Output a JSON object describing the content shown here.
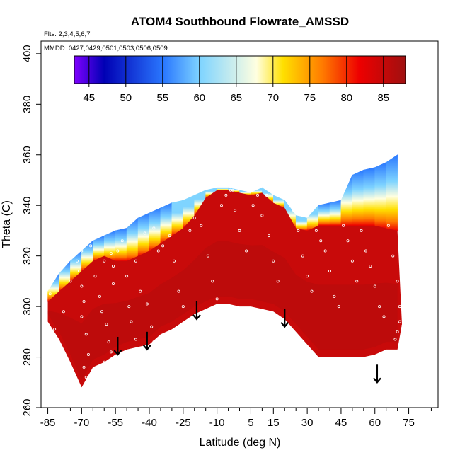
{
  "chart_data": {
    "type": "heatmap",
    "title": "ATOM4 Southbound Flowrate_AMSSD",
    "annotations": {
      "flights": "Flts: 2,3,4,5,6,7",
      "dates": "MMDD: 0427,0429,0501,0503,0506,0509"
    },
    "xlabel": "Latitude (deg N)",
    "ylabel": "Theta (C)",
    "xlim": [
      -88,
      88
    ],
    "ylim": [
      260,
      405
    ],
    "x_major_ticks": [
      -85,
      -70,
      -55,
      -40,
      -25,
      -10,
      5,
      15,
      30,
      45,
      60,
      75
    ],
    "x_minor_ticks": [
      -80,
      -75,
      -65,
      -60,
      -50,
      -45,
      -35,
      -30,
      -20,
      -15,
      -5,
      0,
      10,
      20,
      25,
      35,
      40,
      50,
      55,
      65,
      70,
      80,
      85
    ],
    "y_ticks": [
      260,
      280,
      300,
      320,
      340,
      360,
      380,
      400
    ],
    "colorbar": {
      "ticks": [
        45,
        50,
        55,
        60,
        65,
        70,
        75,
        80,
        85
      ],
      "range": [
        43,
        88
      ],
      "colors": {
        "low": "#7f00ff",
        "deep_blue": "#0000b4",
        "blue": "#2a78ff",
        "light_blue": "#7fd4ff",
        "pale": "#ffffe0",
        "yellow": "#ffe000",
        "orange": "#ff7a00",
        "red": "#ee0000",
        "high": "#a01010"
      }
    },
    "field": {
      "top_boundary_lat": [
        -85,
        -80,
        -75,
        -70,
        -65,
        -60,
        -55,
        -50,
        -45,
        -40,
        -35,
        -30,
        -25,
        -20,
        -15,
        -10,
        -5,
        0,
        5,
        10,
        15,
        20,
        25,
        30,
        35,
        40,
        45,
        50,
        55,
        60,
        65,
        70
      ],
      "top_boundary_theta": [
        306,
        313,
        318,
        322,
        326,
        328,
        330,
        331,
        335,
        337,
        339,
        341,
        342,
        344,
        346,
        347,
        347,
        346,
        345,
        347,
        344,
        342,
        336,
        335,
        340,
        341,
        342,
        352,
        354,
        355,
        357,
        360
      ],
      "bottom_boundary_lat": [
        -85,
        -80,
        -75,
        -70,
        -65,
        -60,
        -55,
        -50,
        -45,
        -40,
        -35,
        -30,
        -25,
        -20,
        -15,
        -10,
        -5,
        0,
        5,
        10,
        15,
        20,
        25,
        30,
        35,
        40,
        45,
        50,
        55,
        60,
        65,
        70,
        72
      ],
      "bottom_boundary_theta": [
        294,
        287,
        278,
        268,
        276,
        278,
        281,
        283,
        284,
        285,
        289,
        291,
        294,
        297,
        299,
        301,
        301,
        300,
        300,
        299,
        298,
        295,
        290,
        285,
        280,
        280,
        280,
        280,
        280,
        281,
        283,
        283,
        293
      ],
      "red_top_theta": [
        302,
        306,
        310,
        314,
        318,
        320,
        318,
        318,
        320,
        322,
        325,
        328,
        331,
        336,
        343,
        346,
        346,
        345,
        344,
        345,
        341,
        339,
        331,
        330,
        332,
        332,
        332,
        332,
        332,
        332,
        331,
        330
      ]
    },
    "arrows": [
      {
        "lat": -54,
        "theta": 288
      },
      {
        "lat": -41,
        "theta": 290
      },
      {
        "lat": -19,
        "theta": 302
      },
      {
        "lat": 20,
        "theta": 299
      },
      {
        "lat": 61,
        "theta": 277
      }
    ],
    "sample_points": [
      [
        -84,
        305
      ],
      [
        -82,
        291
      ],
      [
        -78,
        298
      ],
      [
        -75,
        310
      ],
      [
        -72,
        314
      ],
      [
        -70,
        308
      ],
      [
        -69,
        302
      ],
      [
        -70,
        296
      ],
      [
        -68,
        289
      ],
      [
        -67,
        281
      ],
      [
        -69,
        276
      ],
      [
        -68,
        272
      ],
      [
        -66,
        270
      ],
      [
        -72,
        318
      ],
      [
        -70,
        322
      ],
      [
        -66,
        324
      ],
      [
        -64,
        312
      ],
      [
        -62,
        304
      ],
      [
        -61,
        298
      ],
      [
        -59,
        293
      ],
      [
        -58,
        286
      ],
      [
        -57,
        282
      ],
      [
        -60,
        278
      ],
      [
        -63,
        276
      ],
      [
        -56,
        309
      ],
      [
        -56,
        316
      ],
      [
        -54,
        322
      ],
      [
        -52,
        326
      ],
      [
        -50,
        312
      ],
      [
        -49,
        300
      ],
      [
        -48,
        294
      ],
      [
        -46,
        287
      ],
      [
        -46,
        318
      ],
      [
        -44,
        306
      ],
      [
        -41,
        301
      ],
      [
        -39,
        292
      ],
      [
        -38,
        286
      ],
      [
        -36,
        322
      ],
      [
        -34,
        324
      ],
      [
        -31,
        328
      ],
      [
        -29,
        318
      ],
      [
        -27,
        306
      ],
      [
        -25,
        300
      ],
      [
        -24,
        292
      ],
      [
        -22,
        330
      ],
      [
        -20,
        335
      ],
      [
        -17,
        332
      ],
      [
        -14,
        320
      ],
      [
        -12,
        310
      ],
      [
        -10,
        303
      ],
      [
        -8,
        340
      ],
      [
        -6,
        344
      ],
      [
        -4,
        346
      ],
      [
        -2,
        338
      ],
      [
        0,
        330
      ],
      [
        3,
        322
      ],
      [
        6,
        340
      ],
      [
        8,
        344
      ],
      [
        10,
        336
      ],
      [
        13,
        328
      ],
      [
        15,
        318
      ],
      [
        17,
        310
      ],
      [
        19,
        346
      ],
      [
        22,
        345
      ],
      [
        24,
        338
      ],
      [
        26,
        330
      ],
      [
        28,
        320
      ],
      [
        30,
        312
      ],
      [
        32,
        306
      ],
      [
        34,
        330
      ],
      [
        36,
        326
      ],
      [
        38,
        322
      ],
      [
        40,
        314
      ],
      [
        42,
        304
      ],
      [
        44,
        300
      ],
      [
        46,
        332
      ],
      [
        48,
        326
      ],
      [
        50,
        318
      ],
      [
        52,
        310
      ],
      [
        54,
        330
      ],
      [
        56,
        322
      ],
      [
        58,
        316
      ],
      [
        60,
        308
      ],
      [
        62,
        300
      ],
      [
        64,
        296
      ],
      [
        66,
        332
      ],
      [
        68,
        320
      ],
      [
        70,
        310
      ],
      [
        71,
        300
      ],
      [
        71,
        294
      ],
      [
        70,
        290
      ],
      [
        69,
        287
      ],
      [
        72,
        292
      ],
      [
        -42,
        329
      ],
      [
        -38,
        331
      ],
      [
        -60,
        318
      ],
      [
        -57,
        321
      ],
      [
        -3,
        346
      ],
      [
        12,
        344
      ]
    ]
  }
}
